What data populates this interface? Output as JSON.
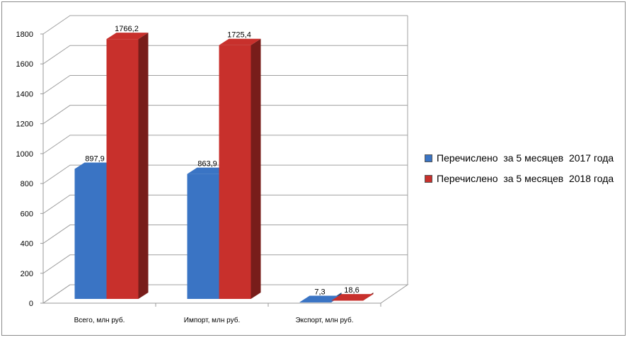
{
  "chart_data": {
    "type": "bar",
    "title": "",
    "categories": [
      "Всего, млн руб.",
      "Импорт, млн руб.",
      "Экспорт, млн руб."
    ],
    "series": [
      {
        "name": "Перечислено  за 5 месяцев  2017 года",
        "values": [
          897.9,
          863.9,
          7.3
        ],
        "labels": [
          "897,9",
          "863,9",
          "7,3"
        ],
        "color": "#3a74c4"
      },
      {
        "name": "Перечислено  за 5 месяцев  2018 года",
        "values": [
          1766.2,
          1725.4,
          18.6
        ],
        "labels": [
          "1766,2",
          "1725,4",
          "18,6"
        ],
        "color": "#c8302c"
      }
    ],
    "ylim": [
      0,
      1800
    ],
    "yticks": [
      "0",
      "200",
      "400",
      "600",
      "800",
      "1000",
      "1200",
      "1400",
      "1600",
      "1800"
    ],
    "grid": true,
    "legend": "right"
  }
}
